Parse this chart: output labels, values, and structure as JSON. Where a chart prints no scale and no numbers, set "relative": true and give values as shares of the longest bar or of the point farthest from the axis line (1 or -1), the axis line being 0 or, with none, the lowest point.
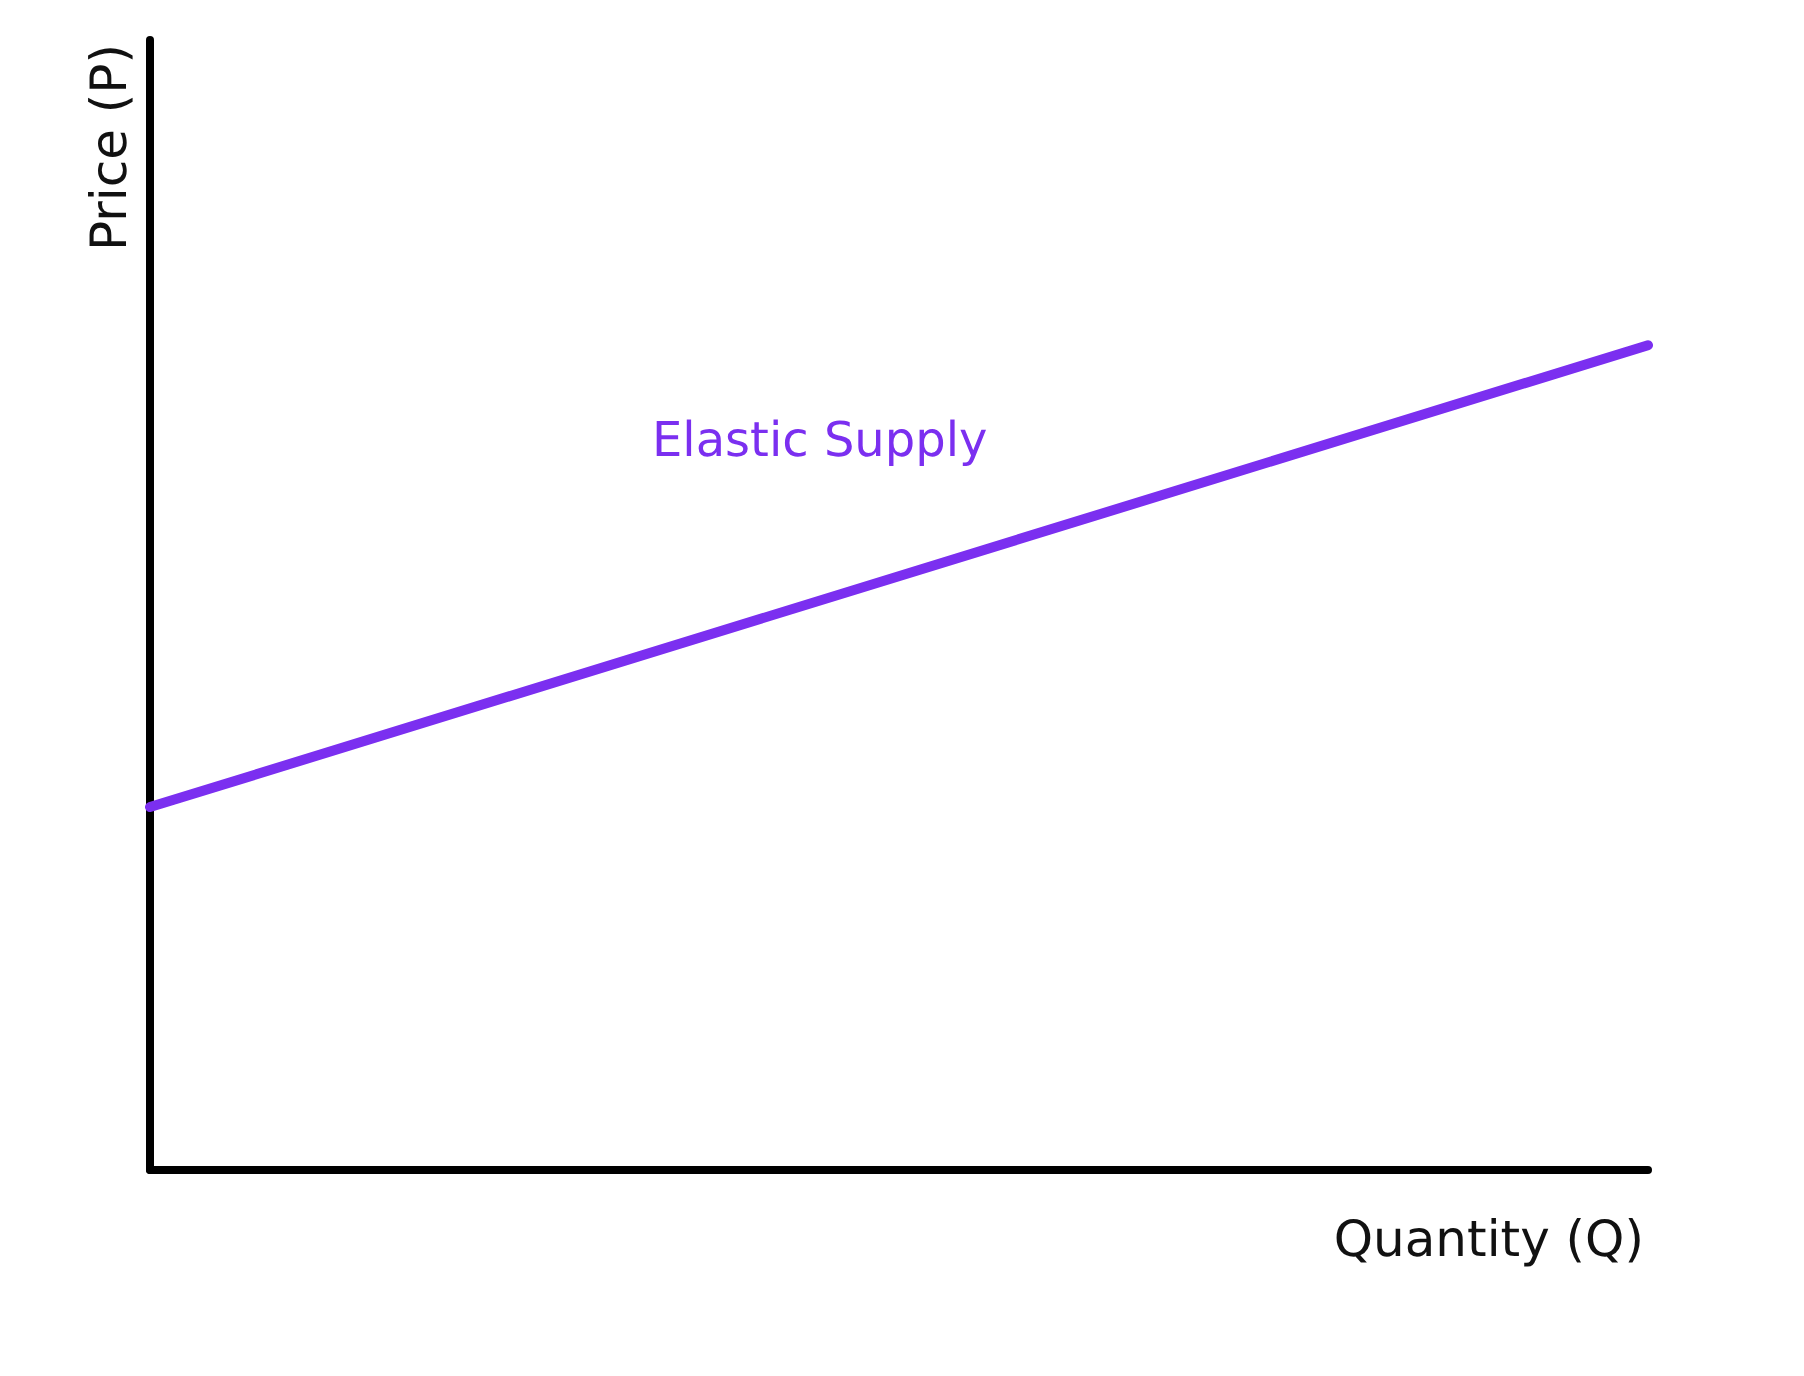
{
  "chart_data": {
    "type": "line",
    "xlabel": "Quantity (Q)",
    "ylabel": "Price (P)",
    "relative": true,
    "categories": [
      null,
      null
    ],
    "series": [
      {
        "name": "Elastic Supply",
        "color": "#7b2ff0",
        "values": [
          0.44,
          1
        ]
      }
    ],
    "grid": false,
    "legend": false,
    "marker": "none",
    "line_style": "solid"
  }
}
